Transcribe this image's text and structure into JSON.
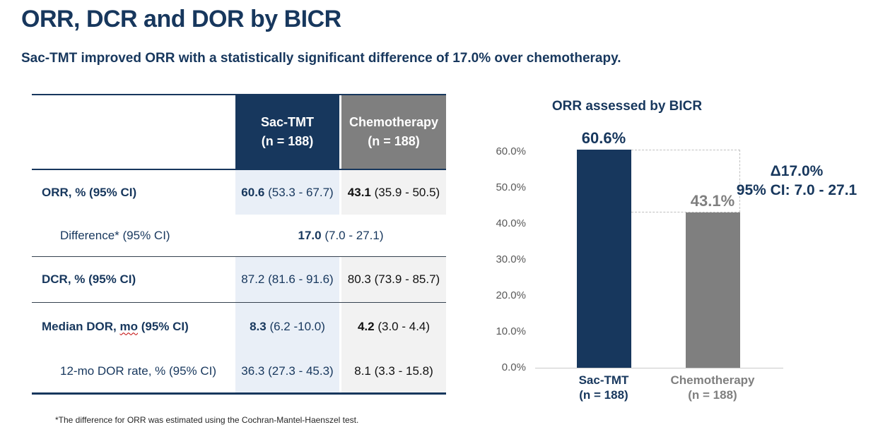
{
  "slide": {
    "title": "ORR, DCR and DOR by BICR",
    "subtitle": "Sac-TMT improved ORR with a statistically significant difference of 17.0% over chemotherapy.",
    "footnote": "*The difference for ORR was estimated using the Cochran-Mantel-Haenszel test."
  },
  "colors": {
    "navy": "#17375D",
    "gray": "#7F7F7F",
    "sac_column_shade": "#E9EFF7",
    "chemo_column_shade": "#F2F2F2"
  },
  "table": {
    "columns": [
      {
        "name": "Sac-TMT",
        "n": "(n = 188)"
      },
      {
        "name": "Chemotherapy",
        "n": "(n = 188)"
      }
    ],
    "rows": {
      "orr": {
        "label": "ORR, % (95% CI)",
        "sac_value": "60.6",
        "sac_ci": " (53.3 - 67.7)",
        "chemo_value": "43.1",
        "chemo_ci": " (35.9 - 50.5)"
      },
      "difference": {
        "label": "Difference* (95% CI)",
        "value": "17.0",
        "ci": " (7.0 - 27.1)"
      },
      "dcr": {
        "label": "DCR, % (95% CI)",
        "sac": "87.2 (81.6 - 91.6)",
        "chemo": "80.3 (73.9 - 85.7)"
      },
      "dor": {
        "label_pre": "Median DOR, ",
        "label_mo": "mo",
        "label_post": " (95% CI)",
        "sac_value": "8.3",
        "sac_ci": " (6.2 -10.0)",
        "chemo_value": "4.2",
        "chemo_ci": " (3.0 - 4.4)"
      },
      "dor12": {
        "label": "12-mo DOR rate, % (95% CI)",
        "sac": "36.3 (27.3 - 45.3)",
        "chemo": "8.1 (3.3 - 15.8)"
      }
    }
  },
  "chart_data": {
    "type": "bar",
    "title": "ORR assessed by BICR",
    "categories": [
      {
        "name": "Sac-TMT",
        "n": "(n = 188)"
      },
      {
        "name": "Chemotherapy",
        "n": "(n = 188)"
      }
    ],
    "values": [
      60.6,
      43.1
    ],
    "value_labels": [
      "60.6%",
      "43.1%"
    ],
    "bar_colors": [
      "#17375D",
      "#7F7F7F"
    ],
    "label_colors": [
      "#17375D",
      "#7F7F7F"
    ],
    "yticks": [
      0,
      10,
      20,
      30,
      40,
      50,
      60
    ],
    "ytick_labels": [
      "0.0%",
      "10.0%",
      "20.0%",
      "30.0%",
      "40.0%",
      "50.0%",
      "60.0%"
    ],
    "ylim": [
      0,
      62
    ],
    "xlabel": "",
    "ylabel": "",
    "grid": false,
    "legend": false,
    "annotation": {
      "line1": "Δ17.0%",
      "line2": "95% CI: 7.0 - 27.1"
    }
  }
}
